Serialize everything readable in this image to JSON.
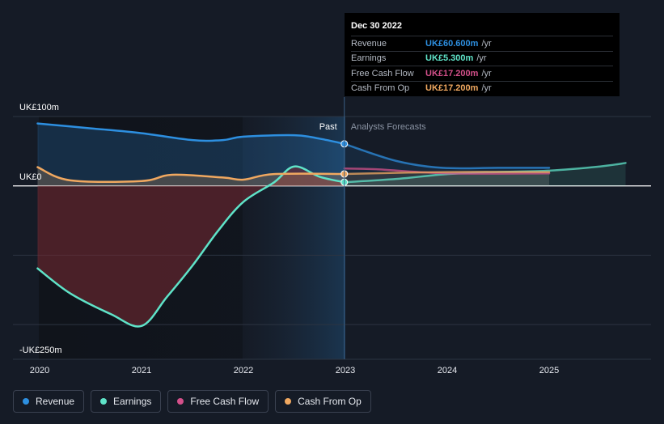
{
  "tooltip": {
    "date": "Dec 30 2022",
    "rows": [
      {
        "name": "Revenue",
        "value": "UK£60.600m",
        "unit": "/yr",
        "color": "#2d8fe0"
      },
      {
        "name": "Earnings",
        "value": "UK£5.300m",
        "unit": "/yr",
        "color": "#5fe3c8"
      },
      {
        "name": "Free Cash Flow",
        "value": "UK£17.200m",
        "unit": "/yr",
        "color": "#d4508a"
      },
      {
        "name": "Cash From Op",
        "value": "UK£17.200m",
        "unit": "/yr",
        "color": "#f0a860"
      }
    ]
  },
  "legend": [
    {
      "name": "Revenue",
      "color": "#2d8fe0"
    },
    {
      "name": "Earnings",
      "color": "#5fe3c8"
    },
    {
      "name": "Free Cash Flow",
      "color": "#d4508a"
    },
    {
      "name": "Cash From Op",
      "color": "#f0a860"
    }
  ],
  "chart_data": {
    "type": "line",
    "y_label_top": "UK£100m",
    "y_label_zero": "UK£0",
    "y_label_bottom": "-UK£250m",
    "ylim": [
      -250,
      100
    ],
    "xlim": [
      2019.8,
      2025.75
    ],
    "x_ticks": [
      "2020",
      "2021",
      "2022",
      "2023",
      "2024",
      "2025"
    ],
    "past_label": "Past",
    "forecast_label": "Analysts Forecasts",
    "divider_x": 2022.99,
    "series": [
      {
        "name": "Revenue",
        "color": "#2d8fe0",
        "fill": true,
        "points": [
          [
            2019.98,
            90
          ],
          [
            2020.5,
            83
          ],
          [
            2021.0,
            76
          ],
          [
            2021.5,
            66
          ],
          [
            2021.8,
            66
          ],
          [
            2022.0,
            71
          ],
          [
            2022.5,
            73
          ],
          [
            2022.75,
            68
          ],
          [
            2022.99,
            60.6
          ]
        ],
        "forecast": [
          [
            2022.99,
            60.6
          ],
          [
            2023.5,
            36
          ],
          [
            2023.95,
            26
          ],
          [
            2024.5,
            26
          ],
          [
            2025.0,
            26
          ]
        ]
      },
      {
        "name": "Earnings",
        "color": "#5fe3c8",
        "fill": true,
        "points": [
          [
            2019.98,
            -119
          ],
          [
            2020.3,
            -155
          ],
          [
            2020.7,
            -185
          ],
          [
            2021.0,
            -202
          ],
          [
            2021.25,
            -160
          ],
          [
            2021.5,
            -115
          ],
          [
            2021.75,
            -65
          ],
          [
            2022.0,
            -23
          ],
          [
            2022.3,
            5
          ],
          [
            2022.5,
            28
          ],
          [
            2022.75,
            13
          ],
          [
            2022.99,
            5.3
          ]
        ],
        "forecast": [
          [
            2022.99,
            5.3
          ],
          [
            2023.5,
            10
          ],
          [
            2024.0,
            17
          ],
          [
            2024.5,
            20
          ],
          [
            2025.0,
            22
          ],
          [
            2025.5,
            28
          ],
          [
            2025.75,
            33
          ]
        ]
      },
      {
        "name": "Free Cash Flow",
        "color": "#d4508a",
        "fill": false,
        "points": [
          [
            2022.99,
            17.2
          ]
        ],
        "forecast": [
          [
            2022.99,
            25
          ],
          [
            2023.3,
            24
          ],
          [
            2024.0,
            18
          ],
          [
            2025.0,
            18
          ]
        ]
      },
      {
        "name": "Cash From Op",
        "color": "#f0a860",
        "fill": true,
        "points": [
          [
            2019.98,
            27
          ],
          [
            2020.3,
            8
          ],
          [
            2021.0,
            7
          ],
          [
            2021.3,
            16
          ],
          [
            2021.8,
            12
          ],
          [
            2022.0,
            9
          ],
          [
            2022.3,
            17
          ],
          [
            2022.99,
            17.2
          ]
        ],
        "forecast": [
          [
            2022.99,
            17.2
          ],
          [
            2024.0,
            20
          ],
          [
            2025.0,
            20
          ]
        ]
      }
    ]
  }
}
